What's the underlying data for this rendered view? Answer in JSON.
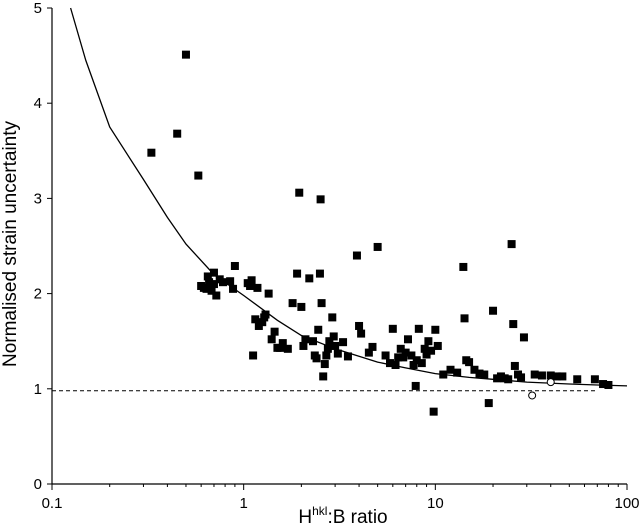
{
  "chart_data": {
    "type": "scatter",
    "title": "",
    "xlabel": {
      "main": "H",
      "superscript": "hkl",
      "suffix": ":B ratio"
    },
    "ylabel": "Normalised strain uncertainty",
    "x_scale": "log",
    "xlim": [
      0.1,
      100
    ],
    "ylim": [
      0,
      5
    ],
    "x_ticks": [
      0.1,
      1,
      10,
      100
    ],
    "x_tick_labels": [
      "0.1",
      "1",
      "10",
      "100"
    ],
    "y_ticks": [
      0,
      1,
      2,
      3,
      4,
      5
    ],
    "y_tick_labels": [
      "0",
      "1",
      "2",
      "3",
      "4",
      "5"
    ],
    "grid": false,
    "legend": "none",
    "reference_line": {
      "y": 0.98,
      "x_range": [
        0.1,
        70
      ],
      "style": "dashed"
    },
    "fit_curve": {
      "style": "solid",
      "points": [
        [
          0.125,
          5.0
        ],
        [
          0.15,
          4.45
        ],
        [
          0.2,
          3.75
        ],
        [
          0.3,
          3.2
        ],
        [
          0.4,
          2.8
        ],
        [
          0.5,
          2.52
        ],
        [
          0.7,
          2.2
        ],
        [
          1.0,
          1.98
        ],
        [
          1.5,
          1.72
        ],
        [
          2.0,
          1.56
        ],
        [
          3.0,
          1.42
        ],
        [
          5.0,
          1.28
        ],
        [
          7.0,
          1.22
        ],
        [
          10.0,
          1.16
        ],
        [
          15.0,
          1.12
        ],
        [
          20.0,
          1.1
        ],
        [
          30.0,
          1.07
        ],
        [
          50.0,
          1.05
        ],
        [
          70.0,
          1.04
        ],
        [
          100.0,
          1.03
        ]
      ]
    },
    "series": [
      {
        "marker": "filled-square",
        "color": "#000000",
        "points": [
          [
            0.33,
            3.48
          ],
          [
            0.45,
            3.68
          ],
          [
            0.5,
            4.51
          ],
          [
            0.58,
            3.24
          ],
          [
            0.6,
            2.08
          ],
          [
            0.62,
            2.06
          ],
          [
            0.64,
            2.05
          ],
          [
            0.65,
            2.18
          ],
          [
            0.66,
            2.12
          ],
          [
            0.68,
            2.03
          ],
          [
            0.7,
            2.22
          ],
          [
            0.7,
            2.1
          ],
          [
            0.72,
            1.98
          ],
          [
            0.75,
            2.15
          ],
          [
            0.78,
            2.12
          ],
          [
            0.85,
            2.13
          ],
          [
            0.88,
            2.05
          ],
          [
            0.9,
            2.29
          ],
          [
            1.05,
            2.11
          ],
          [
            1.08,
            2.08
          ],
          [
            1.1,
            2.14
          ],
          [
            1.12,
            1.35
          ],
          [
            1.15,
            1.73
          ],
          [
            1.18,
            2.06
          ],
          [
            1.2,
            1.66
          ],
          [
            1.25,
            1.7
          ],
          [
            1.28,
            1.75
          ],
          [
            1.3,
            1.78
          ],
          [
            1.35,
            2.0
          ],
          [
            1.4,
            1.52
          ],
          [
            1.45,
            1.6
          ],
          [
            1.5,
            1.43
          ],
          [
            1.55,
            1.43
          ],
          [
            1.6,
            1.48
          ],
          [
            1.7,
            1.42
          ],
          [
            1.8,
            1.9
          ],
          [
            1.9,
            2.21
          ],
          [
            1.95,
            3.06
          ],
          [
            2.0,
            1.86
          ],
          [
            2.05,
            1.45
          ],
          [
            2.1,
            1.52
          ],
          [
            2.2,
            2.16
          ],
          [
            2.3,
            1.5
          ],
          [
            2.35,
            1.35
          ],
          [
            2.4,
            1.32
          ],
          [
            2.45,
            1.62
          ],
          [
            2.5,
            2.21
          ],
          [
            2.52,
            2.99
          ],
          [
            2.55,
            1.9
          ],
          [
            2.6,
            1.13
          ],
          [
            2.65,
            1.26
          ],
          [
            2.7,
            1.35
          ],
          [
            2.75,
            1.42
          ],
          [
            2.8,
            1.5
          ],
          [
            2.9,
            1.75
          ],
          [
            2.95,
            1.55
          ],
          [
            3.0,
            1.45
          ],
          [
            3.1,
            1.37
          ],
          [
            3.3,
            1.49
          ],
          [
            3.5,
            1.34
          ],
          [
            3.9,
            2.4
          ],
          [
            4.0,
            1.66
          ],
          [
            4.1,
            1.58
          ],
          [
            4.5,
            1.38
          ],
          [
            4.7,
            1.44
          ],
          [
            5.0,
            2.49
          ],
          [
            5.5,
            1.35
          ],
          [
            5.8,
            1.27
          ],
          [
            6.0,
            1.63
          ],
          [
            6.2,
            1.25
          ],
          [
            6.4,
            1.33
          ],
          [
            6.6,
            1.42
          ],
          [
            6.8,
            1.33
          ],
          [
            7.0,
            1.38
          ],
          [
            7.2,
            1.52
          ],
          [
            7.5,
            1.35
          ],
          [
            7.7,
            1.25
          ],
          [
            7.9,
            1.03
          ],
          [
            8.0,
            1.3
          ],
          [
            8.2,
            1.63
          ],
          [
            8.5,
            1.27
          ],
          [
            8.8,
            1.42
          ],
          [
            9.0,
            1.36
          ],
          [
            9.2,
            1.5
          ],
          [
            9.5,
            1.4
          ],
          [
            9.8,
            0.76
          ],
          [
            10.0,
            1.62
          ],
          [
            10.3,
            1.45
          ],
          [
            11.0,
            1.15
          ],
          [
            12.0,
            1.2
          ],
          [
            13.0,
            1.17
          ],
          [
            14.0,
            2.28
          ],
          [
            14.2,
            1.74
          ],
          [
            14.5,
            1.3
          ],
          [
            15.0,
            1.28
          ],
          [
            16.0,
            1.2
          ],
          [
            17.0,
            1.16
          ],
          [
            18.0,
            1.15
          ],
          [
            19.0,
            0.85
          ],
          [
            20.0,
            1.82
          ],
          [
            21.0,
            1.11
          ],
          [
            22.0,
            1.13
          ],
          [
            23.0,
            1.11
          ],
          [
            24.0,
            1.1
          ],
          [
            25.0,
            2.52
          ],
          [
            25.5,
            1.68
          ],
          [
            26.0,
            1.24
          ],
          [
            27.0,
            1.15
          ],
          [
            28.0,
            1.12
          ],
          [
            29.0,
            1.54
          ],
          [
            33.0,
            1.15
          ],
          [
            36.0,
            1.14
          ],
          [
            40.0,
            1.14
          ],
          [
            43.0,
            1.13
          ],
          [
            46.0,
            1.13
          ],
          [
            55.0,
            1.1
          ],
          [
            68.0,
            1.1
          ],
          [
            75.0,
            1.05
          ],
          [
            80.0,
            1.04
          ]
        ]
      },
      {
        "marker": "open-circle",
        "color": "#000000",
        "points": [
          [
            32.0,
            0.93
          ],
          [
            40.0,
            1.07
          ]
        ]
      }
    ]
  }
}
